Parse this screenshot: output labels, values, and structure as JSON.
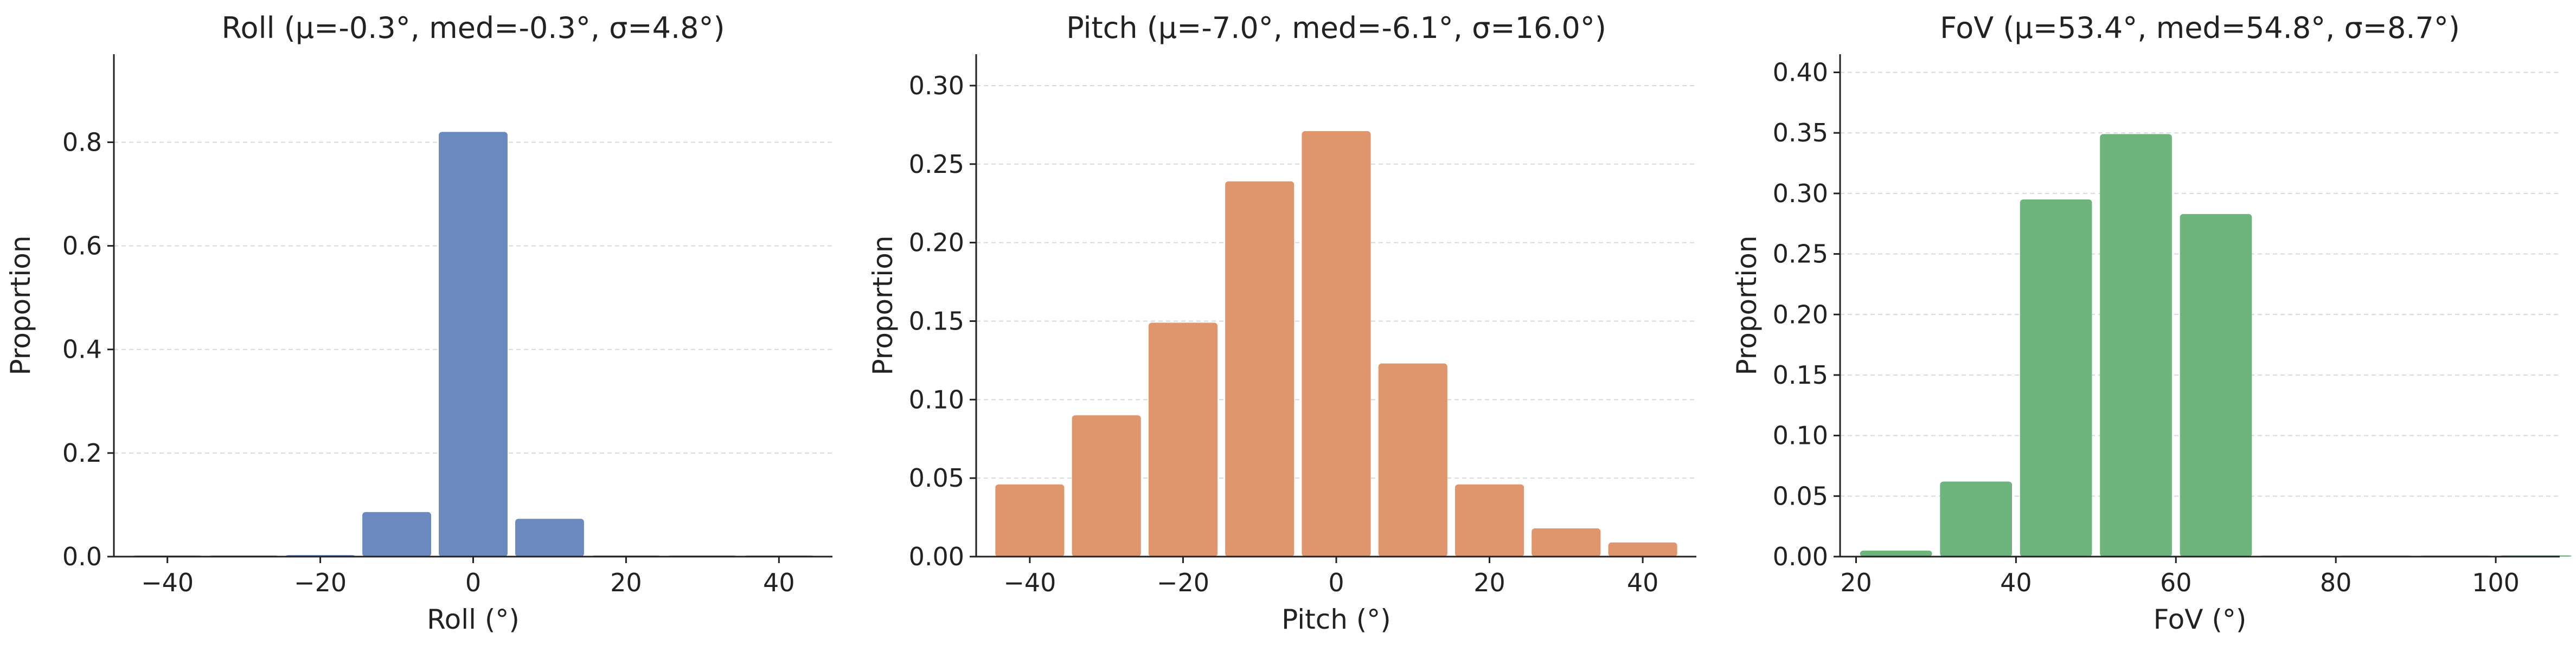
{
  "chart_data": [
    {
      "type": "bar",
      "title": "Roll  (μ=-0.3°, med=-0.3°, σ=4.8°)",
      "xlabel": "Roll (°)",
      "ylabel": "Proportion",
      "color": "#6a89bf",
      "xlim": [
        -47,
        47
      ],
      "ylim": [
        0,
        0.97
      ],
      "xticks": [
        -40,
        -20,
        0,
        20,
        40
      ],
      "xtick_labels": [
        "−40",
        "−20",
        "0",
        "20",
        "40"
      ],
      "yticks": [
        0,
        0.2,
        0.4,
        0.6,
        0.8
      ],
      "ytick_labels": [
        "0.0",
        "0.2",
        "0.4",
        "0.6",
        "0.8"
      ],
      "grid": "y-dashed",
      "bins": [
        {
          "x0": -45,
          "x1": -35,
          "value": 0.001
        },
        {
          "x0": -35,
          "x1": -25,
          "value": 0.0005
        },
        {
          "x0": -25,
          "x1": -15,
          "value": 0.003
        },
        {
          "x0": -15,
          "x1": -5,
          "value": 0.086
        },
        {
          "x0": -5,
          "x1": 5,
          "value": 0.82
        },
        {
          "x0": 5,
          "x1": 15,
          "value": 0.073
        },
        {
          "x0": 15,
          "x1": 25,
          "value": 0.002
        },
        {
          "x0": 25,
          "x1": 35,
          "value": 0.0005
        },
        {
          "x0": 35,
          "x1": 45,
          "value": 0.001
        }
      ]
    },
    {
      "type": "bar",
      "title": "Pitch  (μ=-7.0°, med=-6.1°, σ=16.0°)",
      "xlabel": "Pitch (°)",
      "ylabel": "Proportion",
      "color": "#e0966c",
      "xlim": [
        -47,
        47
      ],
      "ylim": [
        0,
        0.32
      ],
      "xticks": [
        -40,
        -20,
        0,
        20,
        40
      ],
      "xtick_labels": [
        "−40",
        "−20",
        "0",
        "20",
        "40"
      ],
      "yticks": [
        0,
        0.05,
        0.1,
        0.15,
        0.2,
        0.25,
        0.3
      ],
      "ytick_labels": [
        "0.00",
        "0.05",
        "0.10",
        "0.15",
        "0.20",
        "0.25",
        "0.30"
      ],
      "grid": "y-dashed",
      "bins": [
        {
          "x0": -45,
          "x1": -35,
          "value": 0.046
        },
        {
          "x0": -35,
          "x1": -25,
          "value": 0.09
        },
        {
          "x0": -25,
          "x1": -15,
          "value": 0.149
        },
        {
          "x0": -15,
          "x1": -5,
          "value": 0.239
        },
        {
          "x0": -5,
          "x1": 5,
          "value": 0.271
        },
        {
          "x0": 5,
          "x1": 15,
          "value": 0.123
        },
        {
          "x0": 15,
          "x1": 25,
          "value": 0.046
        },
        {
          "x0": 25,
          "x1": 35,
          "value": 0.018
        },
        {
          "x0": 35,
          "x1": 45,
          "value": 0.009
        }
      ]
    },
    {
      "type": "bar",
      "title": "FoV  (μ=53.4°, med=54.8°, σ=8.7°)",
      "xlabel": "FoV (°)",
      "ylabel": "Proportion",
      "color": "#6db57c",
      "xlim": [
        18,
        108
      ],
      "ylim": [
        0,
        0.415
      ],
      "xticks": [
        20,
        40,
        60,
        80,
        100
      ],
      "xtick_labels": [
        "20",
        "40",
        "60",
        "80",
        "100"
      ],
      "yticks": [
        0,
        0.05,
        0.1,
        0.15,
        0.2,
        0.25,
        0.3,
        0.35,
        0.4
      ],
      "ytick_labels": [
        "0.00",
        "0.05",
        "0.10",
        "0.15",
        "0.20",
        "0.25",
        "0.30",
        "0.35",
        "0.40"
      ],
      "grid": "y-dashed",
      "bins": [
        {
          "x0": 20,
          "x1": 30,
          "value": 0.005
        },
        {
          "x0": 30,
          "x1": 40,
          "value": 0.062
        },
        {
          "x0": 40,
          "x1": 50,
          "value": 0.295
        },
        {
          "x0": 50,
          "x1": 60,
          "value": 0.349
        },
        {
          "x0": 60,
          "x1": 70,
          "value": 0.283
        },
        {
          "x0": 70,
          "x1": 80,
          "value": 0.0003
        },
        {
          "x0": 80,
          "x1": 90,
          "value": 0.0003
        },
        {
          "x0": 90,
          "x1": 100,
          "value": 0.0003
        },
        {
          "x0": 100,
          "x1": 110,
          "value": 0.001
        }
      ]
    }
  ]
}
